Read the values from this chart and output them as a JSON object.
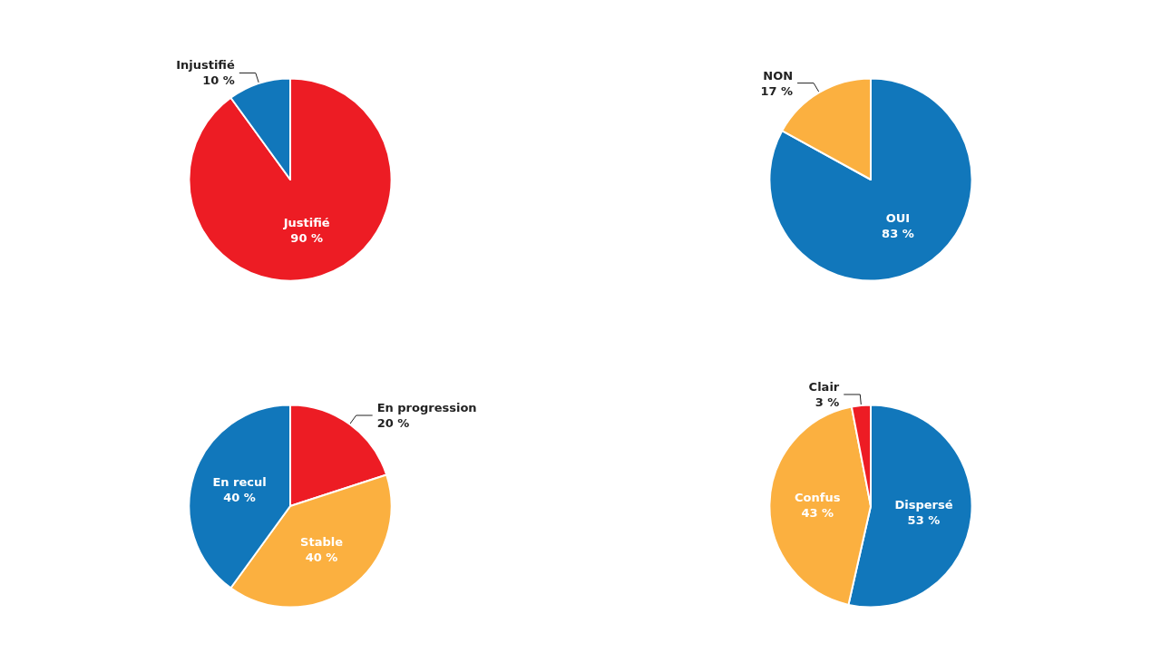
{
  "chart_data": [
    {
      "type": "pie",
      "categories": [
        "Justifié",
        "Injustifié"
      ],
      "values": [
        90,
        10
      ],
      "colors": [
        "#ed1c24",
        "#1177bb"
      ],
      "value_labels": [
        "90 %",
        "10 %"
      ],
      "legend": false
    },
    {
      "type": "pie",
      "categories": [
        "OUI",
        "NON"
      ],
      "values": [
        83,
        17
      ],
      "colors": [
        "#1177bb",
        "#fbb040"
      ],
      "value_labels": [
        "83 %",
        "17 %"
      ],
      "legend": false
    },
    {
      "type": "pie",
      "categories": [
        "En progression",
        "Stable",
        "En recul"
      ],
      "values": [
        20,
        40,
        40
      ],
      "colors": [
        "#ed1c24",
        "#fbb040",
        "#1177bb"
      ],
      "value_labels": [
        "20 %",
        "40 %",
        "40 %"
      ],
      "legend": false
    },
    {
      "type": "pie",
      "categories": [
        "Dispersé",
        "Confus",
        "Clair"
      ],
      "values": [
        53,
        43,
        3
      ],
      "colors": [
        "#1177bb",
        "#fbb040",
        "#ed1c24"
      ],
      "value_labels": [
        "53 %",
        "43 %",
        "3 %"
      ],
      "legend": false
    }
  ]
}
